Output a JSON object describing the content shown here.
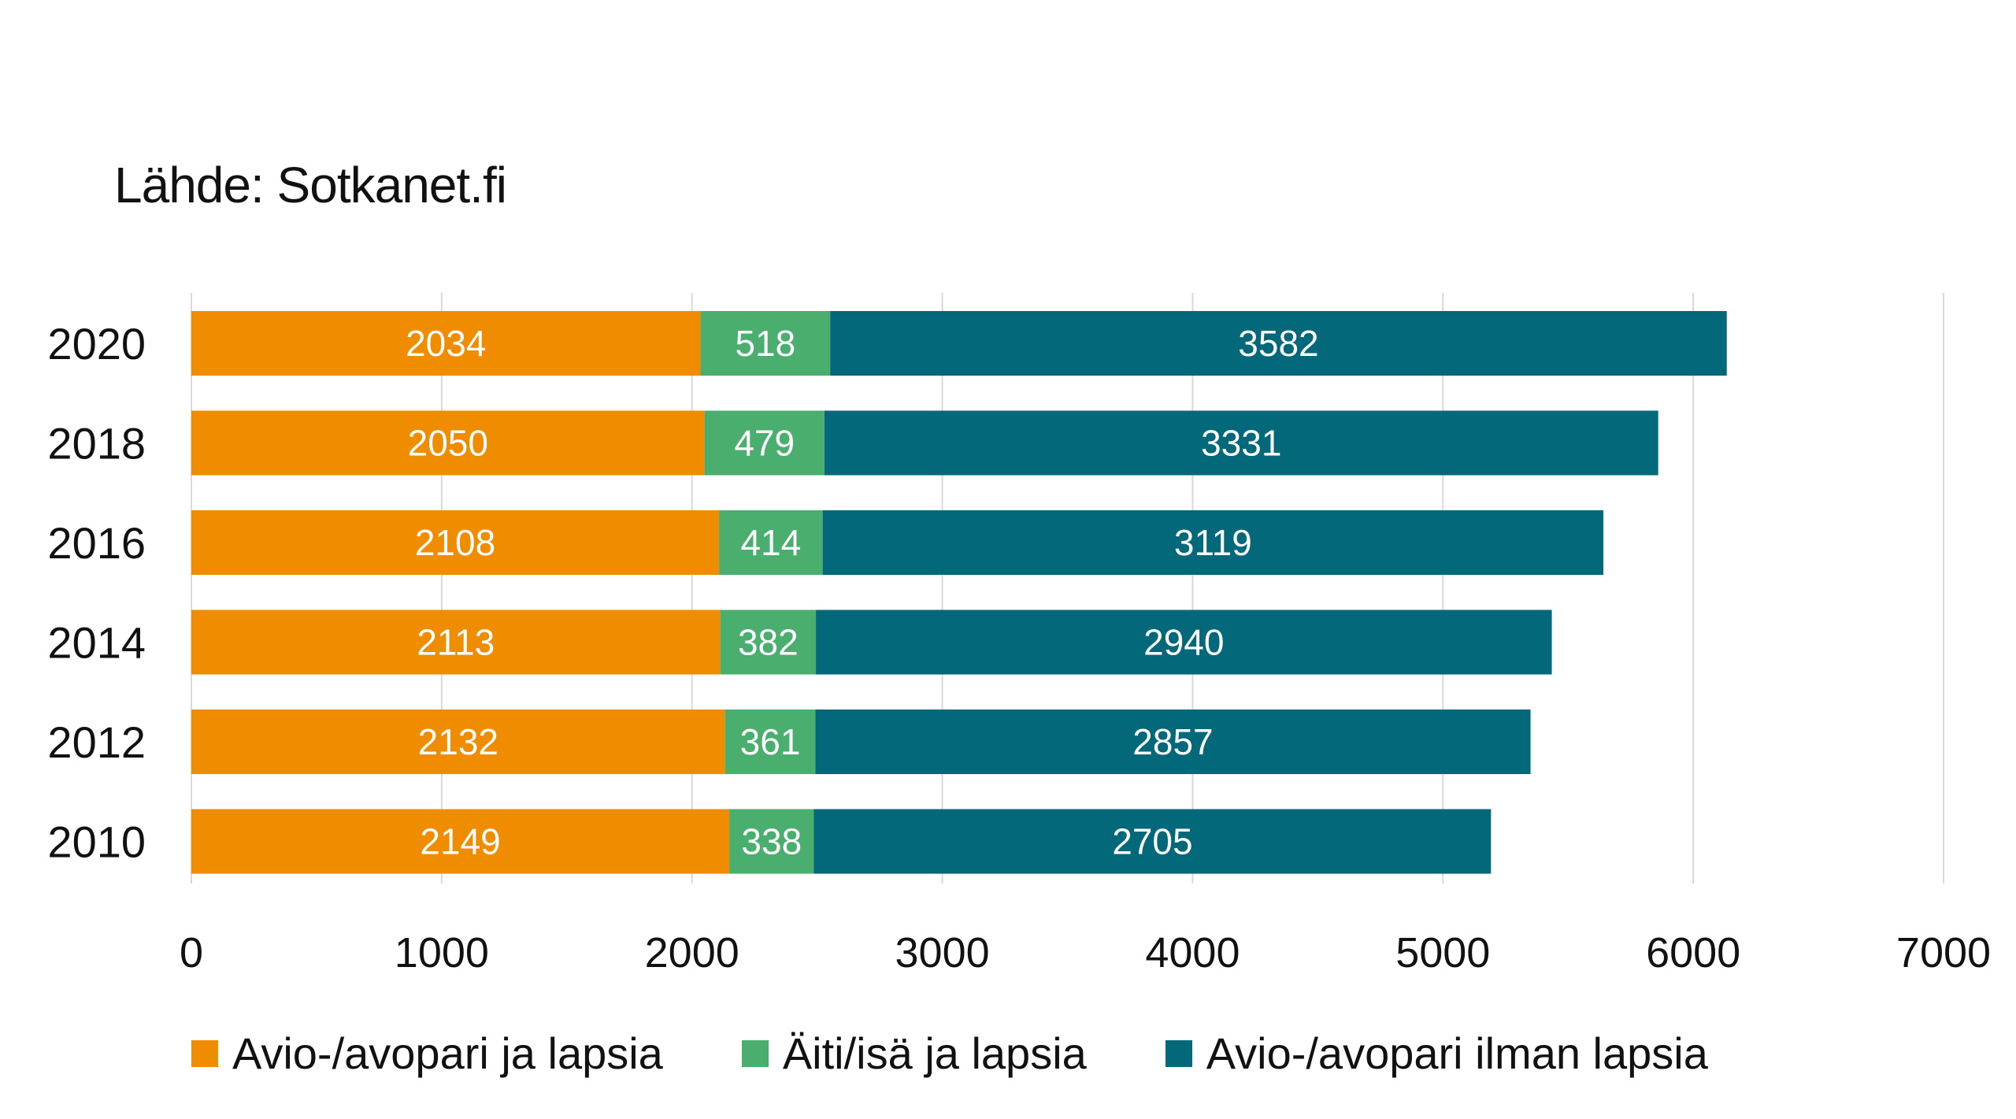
{
  "source": "Lähde: Sotkanet.fi",
  "chart_data": {
    "type": "bar",
    "orientation": "horizontal",
    "stacked": true,
    "title": "",
    "xlabel": "",
    "ylabel": "",
    "categories": [
      "2020",
      "2018",
      "2016",
      "2014",
      "2012",
      "2010"
    ],
    "series": [
      {
        "name": "Avio-/avopari ja lapsia",
        "color": "#F08C00",
        "values": [
          2034,
          2050,
          2108,
          2113,
          2132,
          2149
        ]
      },
      {
        "name": "Äiti/isä ja lapsia",
        "color": "#4AAF6E",
        "values": [
          518,
          479,
          414,
          382,
          361,
          338
        ]
      },
      {
        "name": "Avio-/avopari ilman lapsia",
        "color": "#02687A",
        "values": [
          3582,
          3331,
          3119,
          2940,
          2857,
          2705
        ]
      }
    ],
    "xlim": [
      0,
      7000
    ],
    "xticks": [
      "0",
      "1000",
      "2000",
      "3000",
      "4000",
      "5000",
      "6000",
      "7000"
    ],
    "grid": true,
    "legend_position": "bottom"
  }
}
